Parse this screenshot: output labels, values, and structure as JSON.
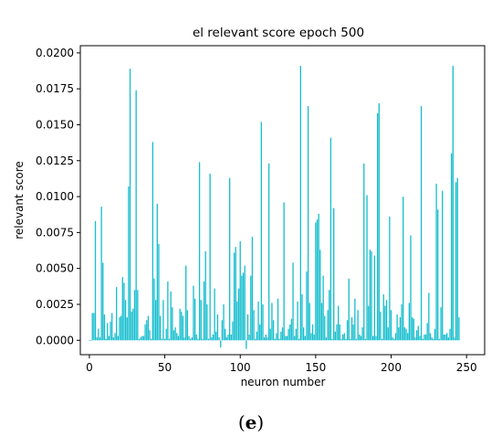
{
  "caption": {
    "open": "(",
    "letter": "e",
    "close": ")"
  },
  "chart_data": {
    "type": "bar",
    "title": "el relevant score epoch 500",
    "xlabel": "neuron number",
    "ylabel": "relevant score",
    "xlim": [
      -6,
      262
    ],
    "ylim": [
      -0.001,
      0.0205
    ],
    "xticks": [
      0,
      50,
      100,
      150,
      200,
      250
    ],
    "yticks": [
      0.0,
      0.0025,
      0.005,
      0.0075,
      0.01,
      0.0125,
      0.015,
      0.0175,
      0.02
    ],
    "ytick_labels": [
      "0.0000",
      "0.0025",
      "0.0050",
      "0.0075",
      "0.0100",
      "0.0125",
      "0.0150",
      "0.0175",
      "0.0200"
    ],
    "grid": false,
    "bar_color": "#17becf",
    "x_start": 0,
    "values": [
      0.0,
      0.0,
      0.0019,
      0.0019,
      0.0083,
      0.0002,
      0.0008,
      0.0002,
      0.0093,
      0.0054,
      0.0018,
      0.0001,
      0.0012,
      0.0003,
      0.0013,
      0.0019,
      0.0002,
      0.0005,
      0.0037,
      0.0003,
      0.0016,
      0.0017,
      0.0044,
      0.004,
      0.0028,
      0.0016,
      0.0107,
      0.0189,
      0.002,
      0.0022,
      0.0035,
      0.0174,
      0.0035,
      0.0001,
      0.0002,
      0.0003,
      0.0003,
      0.0011,
      0.0014,
      0.0017,
      0.0007,
      0.0001,
      0.0138,
      0.0043,
      0.0028,
      0.0095,
      0.0067,
      0.0017,
      0.0001,
      0.0028,
      0.0001,
      0.0008,
      0.0041,
      0.0001,
      0.0034,
      0.0023,
      0.0007,
      0.0009,
      0.0005,
      0.0003,
      0.0022,
      0.002,
      0.0017,
      0.0002,
      0.0052,
      0.0021,
      0.0003,
      0.0001,
      0.0002,
      0.0038,
      0.0029,
      0.0004,
      0.0001,
      0.0124,
      0.0028,
      0.0001,
      0.0041,
      0.0062,
      0.0025,
      0.0001,
      0.0116,
      0.0002,
      0.0004,
      0.0036,
      0.0006,
      0.0018,
      0.0002,
      -0.0005,
      0.0014,
      0.0025,
      0.0008,
      0.0002,
      0.0004,
      0.0113,
      0.0004,
      0.0013,
      0.0061,
      0.0065,
      0.0027,
      0.0036,
      0.0069,
      0.0045,
      0.0047,
      0.0052,
      -0.0006,
      0.0018,
      0.0004,
      0.0045,
      0.0072,
      0.0021,
      0.0001,
      0.0006,
      0.0027,
      0.0011,
      0.0152,
      0.0025,
      0.0002,
      0.0004,
      0.0002,
      0.0123,
      0.0008,
      0.0026,
      0.0014,
      0.0001,
      0.0005,
      0.0029,
      0.0001,
      0.0006,
      0.0009,
      0.0096,
      0.0003,
      0.0003,
      0.0008,
      0.0011,
      0.0015,
      0.0054,
      0.0003,
      0.0008,
      0.0027,
      0.0001,
      0.0191,
      0.0032,
      0.0009,
      0.0003,
      0.0048,
      0.0163,
      0.0026,
      0.0005,
      0.0011,
      0.0004,
      0.0082,
      0.0084,
      0.0088,
      0.0063,
      0.0026,
      0.0045,
      0.0017,
      0.0002,
      0.0021,
      0.0035,
      0.0141,
      0.0001,
      0.0092,
      0.0006,
      0.0011,
      0.0024,
      0.0011,
      0.0001,
      0.0004,
      0.0005,
      0.0001,
      0.0014,
      0.0043,
      0.0001,
      0.0016,
      0.0011,
      0.0029,
      0.0001,
      0.0021,
      0.0004,
      0.0003,
      0.0009,
      0.0123,
      0.0001,
      0.0101,
      0.0024,
      0.0063,
      0.0062,
      0.0003,
      0.0059,
      0.0003,
      0.0158,
      0.0165,
      0.002,
      0.0001,
      0.0032,
      0.0024,
      0.0028,
      0.0009,
      0.0086,
      0.0021,
      0.0002,
      0.0001,
      0.0005,
      0.0018,
      0.0009,
      0.0016,
      0.0025,
      0.01,
      0.0009,
      0.0008,
      0.0005,
      0.0026,
      0.0073,
      0.0016,
      0.0015,
      0.0002,
      0.0007,
      0.001,
      0.0003,
      0.0163,
      0.0001,
      0.0004,
      0.0004,
      0.0012,
      0.0033,
      0.0005,
      0.0002,
      0.0001,
      0.0008,
      0.0109,
      0.0091,
      0.0001,
      0.0023,
      0.0104,
      0.0004,
      0.0004,
      0.0005,
      0.0002,
      0.0008,
      0.013,
      0.0191,
      0.0002,
      0.011,
      0.0113,
      0.0016
    ]
  }
}
